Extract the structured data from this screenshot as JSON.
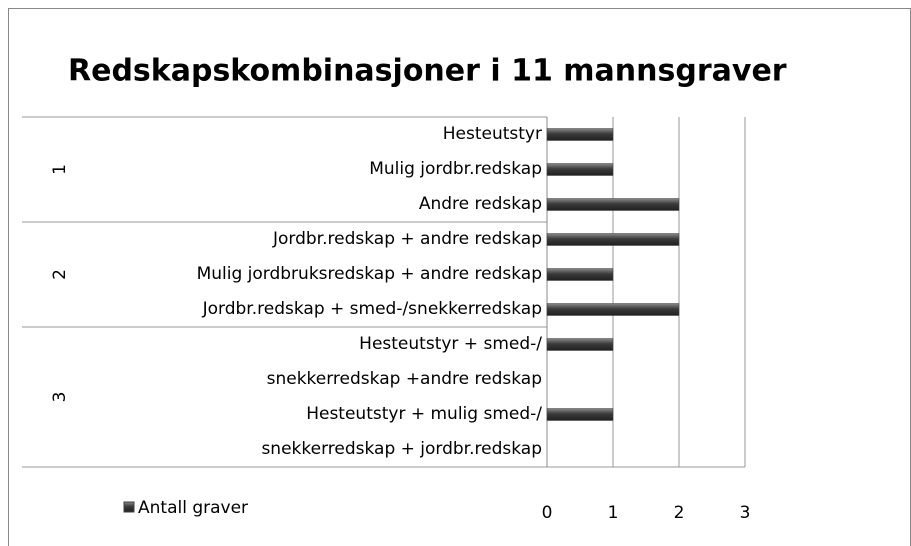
{
  "chart_data": {
    "type": "bar",
    "orientation": "horizontal",
    "title": "Redskapskombinasjoner  i 11 mannsgraver",
    "groups": [
      {
        "name": "1",
        "categories": [
          "Hesteutstyr",
          "Mulig jordbr.redskap",
          "Andre redskap"
        ]
      },
      {
        "name": "2",
        "categories": [
          "Jordbr.redskap + andre redskap",
          "Mulig jordbruksredskap + andre redskap",
          "Jordbr.redskap + smed-/snekkerredskap"
        ]
      },
      {
        "name": "3",
        "categories": [
          "Hesteutstyr + smed-/\nsnekkerredskap +andre redskap",
          "Hesteutstyr + mulig smed-/\nsnekkerredskap + jordbr.redskap"
        ]
      }
    ],
    "series": [
      {
        "name": "Antall graver",
        "color": "#404040",
        "values": [
          1,
          1,
          2,
          2,
          1,
          2,
          1,
          1
        ]
      }
    ],
    "xlim": [
      0,
      3
    ],
    "xticks": [
      0,
      1,
      2,
      3
    ],
    "grid": true,
    "legend": "bottom-left"
  }
}
